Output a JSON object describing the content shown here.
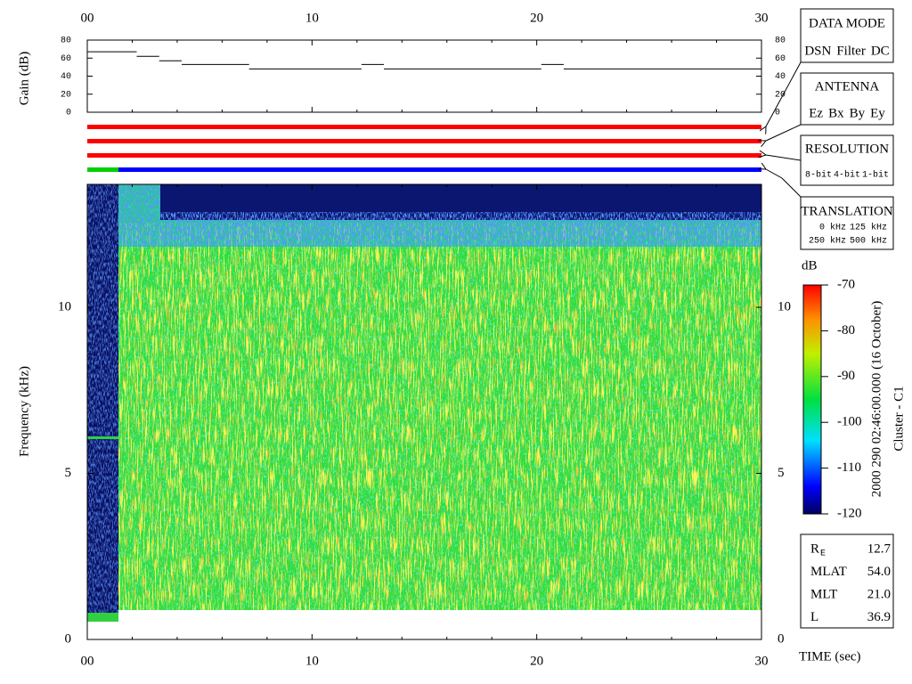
{
  "chart_data": [
    {
      "type": "step",
      "ylabel": "Gain (dB)",
      "x": [
        0,
        2.2,
        3.2,
        4.2,
        7.2,
        12.2,
        13.2,
        20.2,
        21.2
      ],
      "values": [
        67,
        62,
        57,
        53,
        48,
        53,
        48,
        53,
        48
      ],
      "color": "#000000",
      "xlim": [
        0,
        30
      ],
      "ylim": [
        0,
        80
      ],
      "xticks": [
        {
          "value": 0,
          "label": "00"
        },
        10,
        20,
        30
      ],
      "yticks": [
        0,
        20,
        40,
        60,
        80
      ]
    },
    {
      "type": "spectrogram",
      "ylabel": "Frequency (kHz)",
      "xlabel": "TIME (sec)",
      "xlim": [
        0,
        30
      ],
      "ylim": [
        0,
        13.7
      ],
      "xticks": [
        {
          "value": 0,
          "label": "00"
        },
        10,
        20,
        30
      ],
      "yticks": [
        0,
        5,
        10
      ],
      "colorbar": {
        "label": "dB",
        "lim": [
          -120,
          -70
        ],
        "ticks": [
          -70,
          -80,
          -90,
          -100,
          -110,
          -120
        ]
      }
    }
  ],
  "data_mode": {
    "title": "DATA MODE",
    "items": [
      {
        "label": "DSN",
        "color": "#ff0000"
      },
      {
        "label": "Filter",
        "color": "#00d000"
      },
      {
        "label": "DC",
        "color": "#0000ff"
      }
    ]
  },
  "antenna": {
    "title": "ANTENNA",
    "items": [
      {
        "label": "Ez",
        "color": "#ff0000"
      },
      {
        "label": "Bx",
        "color": "#00d000"
      },
      {
        "label": "By",
        "color": "#0000ff"
      },
      {
        "label": "Ey",
        "color": "#000000"
      }
    ]
  },
  "resolution": {
    "title": "RESOLUTION",
    "items": [
      {
        "label": "8-bit",
        "color": "#ff0000"
      },
      {
        "label": "4-bit",
        "color": "#00d000"
      },
      {
        "label": "1-bit",
        "color": "#0000ff"
      }
    ]
  },
  "translation": {
    "title": "TRANSLATION",
    "rows": [
      [
        {
          "label": "0 kHz",
          "color": "#ff0000"
        },
        {
          "label": "125 kHz",
          "color": "#00d000"
        }
      ],
      [
        {
          "label": "250 kHz",
          "color": "#0000ff"
        },
        {
          "label": "500 kHz",
          "color": "#000000"
        }
      ]
    ]
  },
  "timestamp": "2000 290 02:46:00.000 (16 October)",
  "spacecraft": "Cluster - C1",
  "ephemeris": [
    {
      "label": "R",
      "sub": "E",
      "value": "12.7"
    },
    {
      "label": "MLAT",
      "value": "54.0"
    },
    {
      "label": "MLT",
      "value": "21.0"
    },
    {
      "label": "L",
      "value": "36.9"
    }
  ]
}
